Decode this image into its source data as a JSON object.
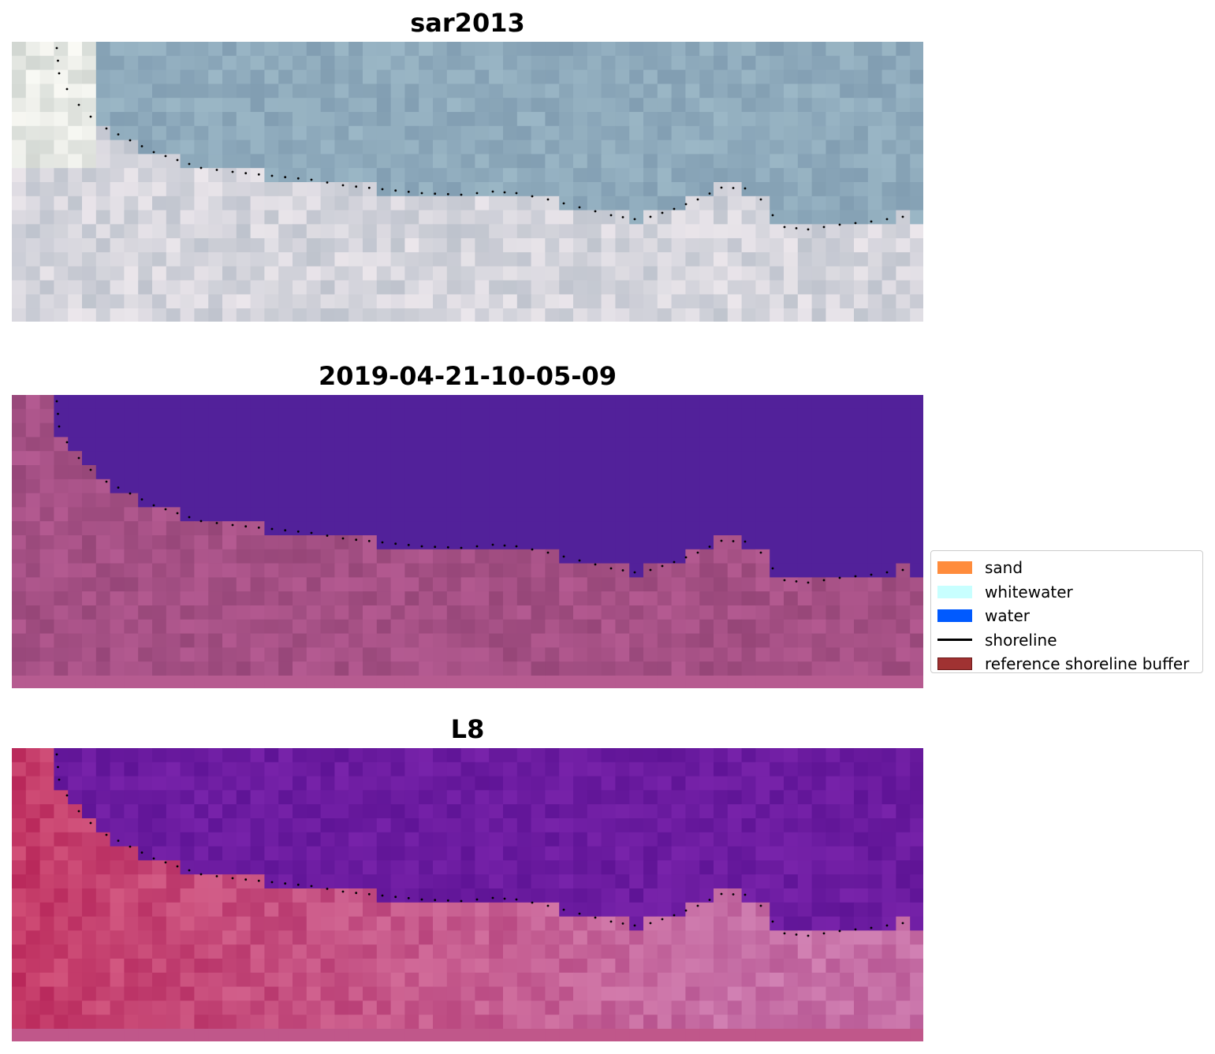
{
  "panels": [
    {
      "title": "sar2013",
      "style": "rgb"
    },
    {
      "title": "2019-04-21-10-05-09",
      "style": "classified"
    },
    {
      "title": "L8",
      "style": "index"
    }
  ],
  "legend": {
    "items": [
      {
        "label": "sand",
        "color": "#ff8c3c",
        "kind": "patch"
      },
      {
        "label": "whitewater",
        "color": "#c8ffff",
        "kind": "patch"
      },
      {
        "label": "water",
        "color": "#005aff",
        "kind": "patch"
      },
      {
        "label": "shoreline",
        "color": "#000000",
        "kind": "line"
      },
      {
        "label": "reference shoreline buffer",
        "color": "#a03232",
        "kind": "patch"
      }
    ]
  },
  "colors": {
    "water_class": "#52219a",
    "land_class": "#a24f85",
    "water_index": "#6a1a98",
    "land_index": "#c73a6e",
    "sky_rgb": "#8aa5b8",
    "beach_rgb": "#d3d0d6"
  }
}
